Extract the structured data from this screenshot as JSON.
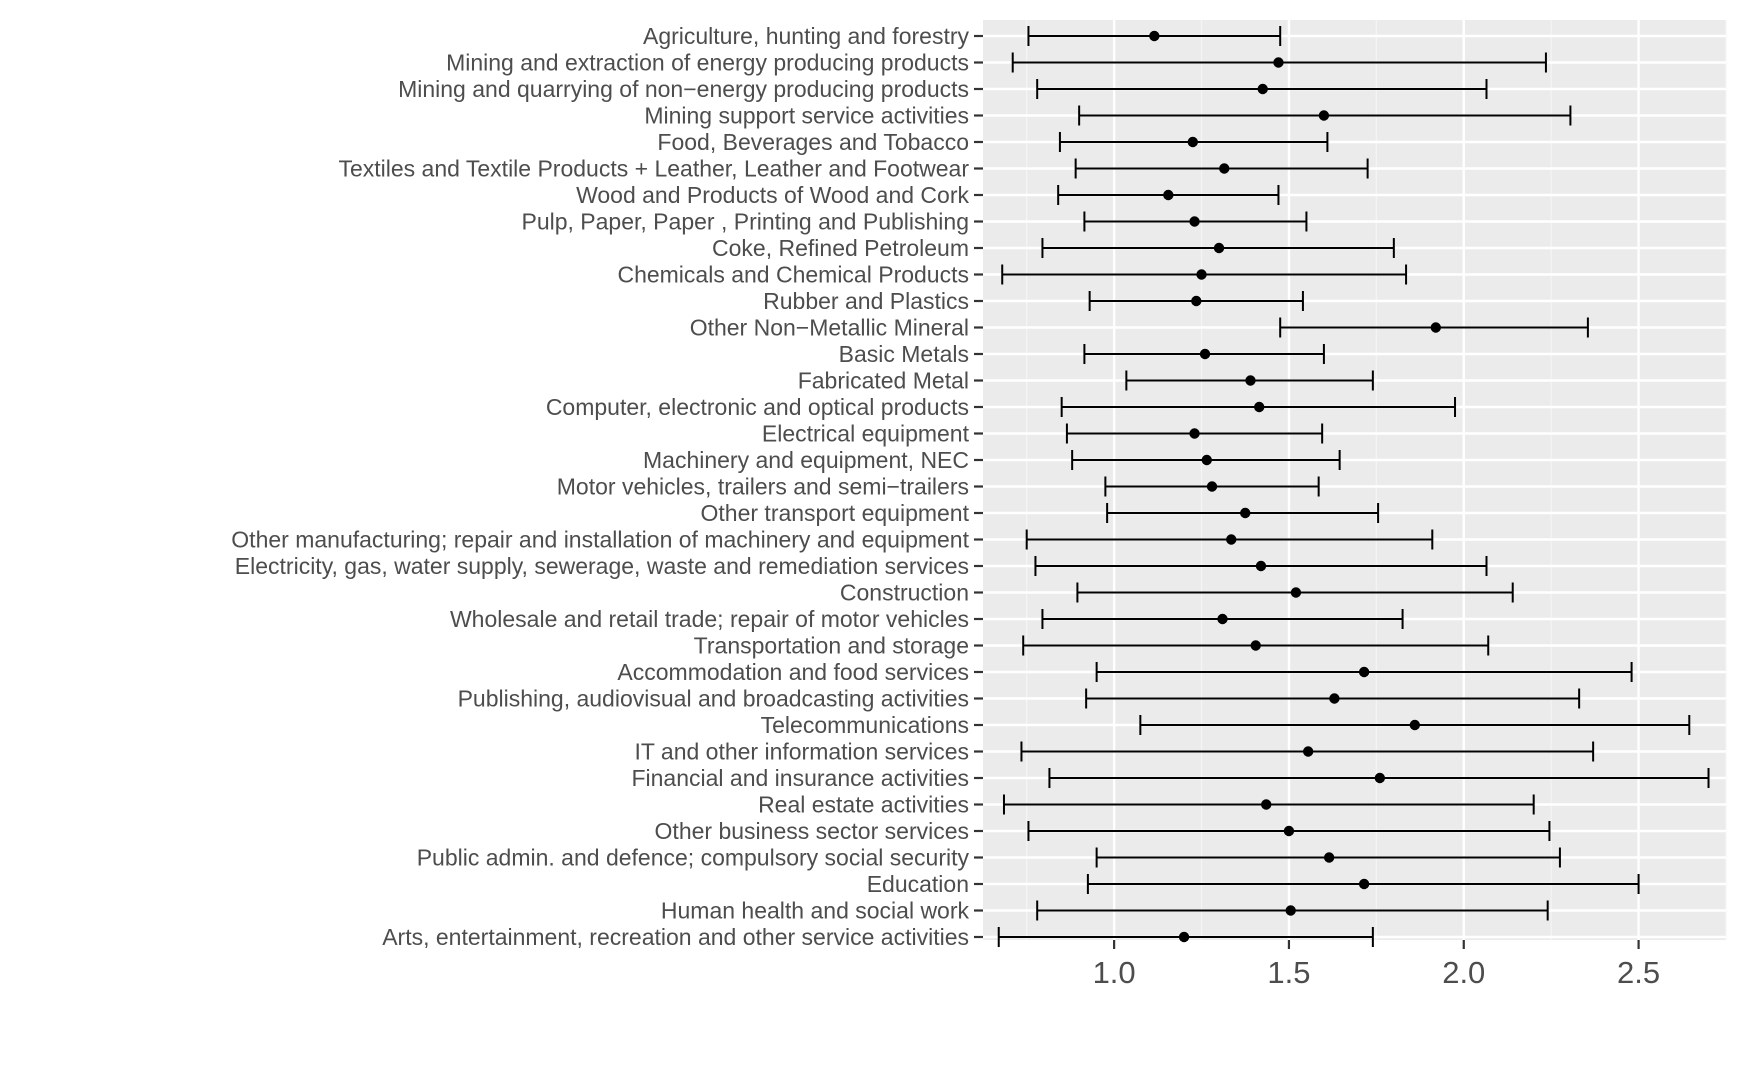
{
  "chart_data": {
    "type": "errorbar",
    "title": "",
    "xlabel": "",
    "ylabel": "",
    "xlim": [
      0.625,
      2.75
    ],
    "x_ticks": [
      1.0,
      1.5,
      2.0,
      2.5
    ],
    "x_tick_labels": [
      "1.0",
      "1.5",
      "2.0",
      "2.5"
    ],
    "grid": true,
    "legend": "none",
    "colors": {
      "panel_background": "#ebebeb",
      "grid_major": "#ffffff",
      "grid_minor": "#f5f5f5",
      "point": "#000000",
      "errorbar": "#000000",
      "axis_text": "#4d4d4d",
      "tick": "#333333"
    },
    "categories": [
      "Agriculture, hunting and forestry",
      "Mining and extraction of energy producing products",
      "Mining and quarrying of non−energy producing products",
      "Mining support service activities",
      "Food, Beverages and Tobacco",
      "Textiles and Textile Products + Leather, Leather and Footwear",
      "Wood and Products of Wood and Cork",
      "Pulp, Paper, Paper , Printing and Publishing",
      "Coke, Refined Petroleum",
      "Chemicals and Chemical Products",
      "Rubber and Plastics",
      "Other Non−Metallic Mineral",
      "Basic Metals",
      "Fabricated Metal",
      "Computer, electronic and optical products",
      "Electrical equipment",
      "Machinery and equipment, NEC",
      "Motor vehicles, trailers and semi−trailers",
      "Other transport equipment",
      "Other manufacturing; repair and installation of machinery and equipment",
      "Electricity, gas, water supply, sewerage, waste and remediation services",
      "Construction",
      "Wholesale and retail trade; repair of motor vehicles",
      "Transportation and storage",
      "Accommodation and food services",
      "Publishing, audiovisual and broadcasting activities",
      "Telecommunications",
      "IT and other information services",
      "Financial and insurance activities",
      "Real estate activities",
      "Other business sector services",
      "Public admin. and defence; compulsory social security",
      "Education",
      "Human health and social work",
      "Arts, entertainment, recreation and other service activities"
    ],
    "estimates": [
      1.115,
      1.47,
      1.425,
      1.6,
      1.225,
      1.315,
      1.155,
      1.23,
      1.3,
      1.25,
      1.235,
      1.92,
      1.26,
      1.39,
      1.415,
      1.23,
      1.265,
      1.28,
      1.375,
      1.335,
      1.42,
      1.52,
      1.31,
      1.405,
      1.715,
      1.63,
      1.86,
      1.555,
      1.76,
      1.435,
      1.5,
      1.615,
      1.715,
      1.505,
      1.2
    ],
    "lower": [
      0.755,
      0.71,
      0.78,
      0.9,
      0.845,
      0.89,
      0.84,
      0.915,
      0.795,
      0.68,
      0.93,
      1.475,
      0.915,
      1.035,
      0.85,
      0.865,
      0.88,
      0.975,
      0.98,
      0.75,
      0.775,
      0.895,
      0.795,
      0.74,
      0.95,
      0.92,
      1.075,
      0.735,
      0.815,
      0.685,
      0.755,
      0.95,
      0.925,
      0.78,
      0.67
    ],
    "upper": [
      1.475,
      2.235,
      2.065,
      2.305,
      1.61,
      1.725,
      1.47,
      1.55,
      1.8,
      1.835,
      1.54,
      2.355,
      1.6,
      1.74,
      1.975,
      1.595,
      1.645,
      1.585,
      1.755,
      1.91,
      2.065,
      2.14,
      1.825,
      2.07,
      2.48,
      2.33,
      2.645,
      2.37,
      2.7,
      2.2,
      2.245,
      2.275,
      2.5,
      2.24,
      1.74
    ]
  }
}
